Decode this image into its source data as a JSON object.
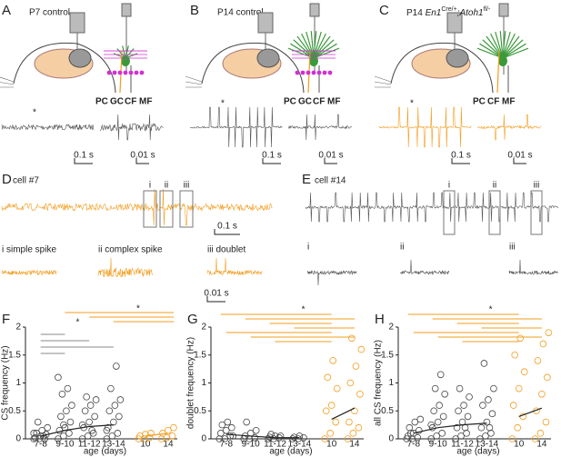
{
  "panels": {
    "A": {
      "letter": "A",
      "title": "P7 control",
      "labels": [
        "PC",
        "GC",
        "CF",
        "MF"
      ],
      "label_colors": [
        "#3a9a3a",
        "#d22fd2",
        "#f39c1e",
        "#555555"
      ],
      "star": "*",
      "scales": [
        "0.1 s",
        "0.01 s"
      ]
    },
    "B": {
      "letter": "B",
      "title": "P14 control",
      "labels": [
        "PC",
        "GC",
        "CF",
        "MF"
      ],
      "label_colors": [
        "#3a9a3a",
        "#d22fd2",
        "#f39c1e",
        "#555555"
      ],
      "star": "*",
      "scales": [
        "0.1 s",
        "0.01 s"
      ]
    },
    "C": {
      "letter": "C",
      "title_parts": [
        "P14 ",
        "En1",
        "Cre/+",
        ";Atoh1",
        "fl/-"
      ],
      "labels": [
        "PC",
        "CF",
        "MF"
      ],
      "label_colors": [
        "#3a9a3a",
        "#f39c1e",
        "#555555"
      ],
      "star": "*",
      "scales": [
        "0.1 s",
        "0.01 s"
      ]
    },
    "D": {
      "letter": "D",
      "cell": "cell #7",
      "markers": [
        "i",
        "ii",
        "iii"
      ],
      "scale": "0.1 s",
      "subtitles": [
        "i simple spike",
        "ii complex spike",
        "iii doublet"
      ],
      "scale2": "0.01 s"
    },
    "E": {
      "letter": "E",
      "cell": "cell #14",
      "markers": [
        "i",
        "ii",
        "iii"
      ],
      "snippet_labels": [
        "i",
        "ii",
        "iii"
      ]
    }
  },
  "chart_data": [
    {
      "type": "scatter",
      "letter": "F",
      "ylabel": "CS frequency (Hz)",
      "xlabel": "age (days)",
      "categories": [
        "7-8",
        "9-10",
        "11-12",
        "13-14",
        "10",
        "14"
      ],
      "colors": [
        "#444444",
        "#444444",
        "#444444",
        "#444444",
        "#f39c1e",
        "#f39c1e"
      ],
      "values": [
        [
          0,
          0,
          0,
          0.02,
          0.05,
          0.08,
          0.1,
          0.15,
          0.2,
          0.3,
          0.05,
          0.1
        ],
        [
          0,
          0.05,
          0.1,
          0.15,
          0.2,
          0.3,
          0.4,
          0.5,
          0.6,
          0.8,
          0.9,
          1.1,
          0.25
        ],
        [
          0,
          0.05,
          0.1,
          0.2,
          0.3,
          0.4,
          0.5,
          0.6,
          0.7,
          0.75,
          0.15,
          0.25
        ],
        [
          0,
          0.05,
          0.1,
          0.2,
          0.3,
          0.4,
          0.5,
          0.6,
          0.7,
          0.9,
          1.3,
          0.15
        ],
        [
          0,
          0,
          0.02,
          0.05,
          0.08,
          0.1
        ],
        [
          0,
          0.02,
          0.05,
          0.1,
          0.15,
          0.2
        ]
      ],
      "trend_lines": [
        {
          "color": "#222222",
          "values": [
            0.05,
            0.15,
            0.22,
            0.25
          ]
        },
        {
          "color": "#f39c1e",
          "values": [
            0.05,
            0.1
          ]
        }
      ],
      "annotations": [
        "*",
        "*"
      ],
      "annotation_colors": [
        "#888888",
        "#f39c1e"
      ],
      "ylim": [
        0,
        2
      ],
      "yticks": [
        0,
        0.5,
        1,
        1.5,
        2
      ]
    },
    {
      "type": "scatter",
      "letter": "G",
      "ylabel": "doublet frequency (Hz)",
      "xlabel": "age (days)",
      "categories": [
        "7-8",
        "9-10",
        "11-12",
        "13-14",
        "10",
        "14"
      ],
      "colors": [
        "#444444",
        "#444444",
        "#444444",
        "#444444",
        "#f39c1e",
        "#f39c1e"
      ],
      "values": [
        [
          0,
          0,
          0.05,
          0.1,
          0.15,
          0.2,
          0.25,
          0.3,
          0.05
        ],
        [
          0,
          0,
          0.02,
          0.05,
          0.1,
          0.15,
          0.3
        ],
        [
          0,
          0,
          0.02,
          0.03,
          0.05,
          0.05,
          0.08
        ],
        [
          0,
          0,
          0.02,
          0.03,
          0.05
        ],
        [
          0,
          0.1,
          0.3,
          0.5,
          0.6,
          0.9,
          1.1,
          1.4
        ],
        [
          0,
          0.1,
          0.2,
          0.3,
          0.5,
          0.8,
          1,
          1.3,
          1.6,
          1.8
        ]
      ],
      "trend_lines": [
        {
          "color": "#222222",
          "values": [
            0.08,
            0.05,
            0.02,
            0.02
          ]
        },
        {
          "color": "#222222",
          "values": [
            0.35,
            0.55
          ]
        }
      ],
      "annotations": [
        "*"
      ],
      "annotation_colors": [
        "#f39c1e"
      ],
      "ylim": [
        0,
        2
      ],
      "yticks": [
        0,
        0.5,
        1,
        1.5,
        2
      ]
    },
    {
      "type": "scatter",
      "letter": "H",
      "ylabel": "all CS frequency (Hz)",
      "xlabel": "age (days)",
      "categories": [
        "7-8",
        "9-10",
        "11-12",
        "13-14",
        "10",
        "14"
      ],
      "colors": [
        "#444444",
        "#444444",
        "#444444",
        "#444444",
        "#f39c1e",
        "#f39c1e"
      ],
      "values": [
        [
          0,
          0,
          0.02,
          0.05,
          0.1,
          0.15,
          0.2,
          0.3,
          0.35,
          0.1
        ],
        [
          0,
          0.05,
          0.1,
          0.2,
          0.3,
          0.4,
          0.5,
          0.6,
          0.8,
          0.9,
          1.15,
          0.25
        ],
        [
          0,
          0.05,
          0.1,
          0.2,
          0.3,
          0.4,
          0.5,
          0.6,
          0.75,
          0.9,
          0.2
        ],
        [
          0,
          0.05,
          0.1,
          0.2,
          0.3,
          0.45,
          0.6,
          0.7,
          0.9,
          1.35,
          0.2
        ],
        [
          0,
          0.2,
          0.4,
          0.6,
          0.9,
          1.2,
          1.5,
          1.8
        ],
        [
          0,
          0.1,
          0.3,
          0.5,
          0.8,
          1.1,
          1.4,
          1.7,
          1.9
        ]
      ],
      "trend_lines": [
        {
          "color": "#222222",
          "values": [
            0.1,
            0.2,
            0.25,
            0.28
          ]
        },
        {
          "color": "#222222",
          "values": [
            0.4,
            0.55
          ]
        }
      ],
      "annotations": [
        "*"
      ],
      "annotation_colors": [
        "#f39c1e"
      ],
      "ylim": [
        0,
        2
      ],
      "yticks": [
        0,
        0.5,
        1,
        1.5,
        2
      ]
    }
  ]
}
